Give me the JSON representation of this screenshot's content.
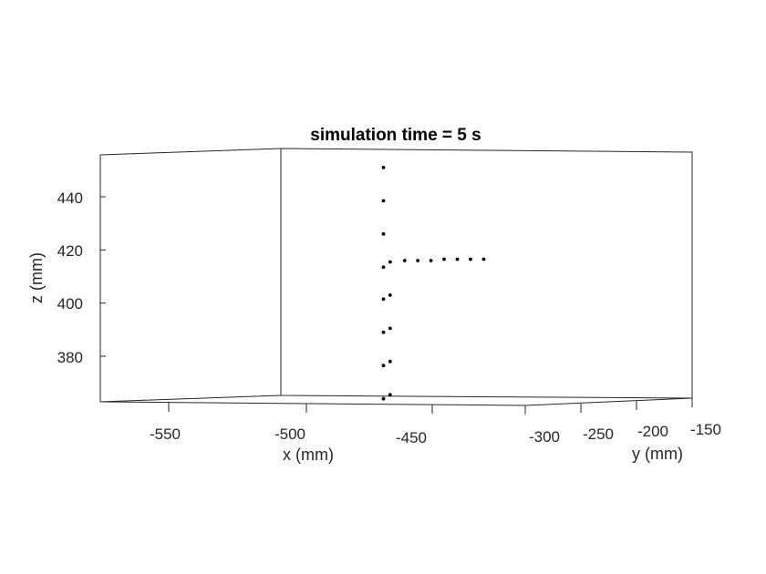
{
  "chart_data": {
    "type": "scatter3d",
    "title": "simulation time = 5 s",
    "xlabel": "x (mm)",
    "ylabel": "y (mm)",
    "zlabel": "z (mm)",
    "x_ticks": [
      "-550",
      "-500",
      "-450"
    ],
    "y_ticks": [
      "-300",
      "-250",
      "-200",
      "-150"
    ],
    "z_ticks": [
      "440",
      "420",
      "400",
      "380"
    ],
    "z_tick_values": [
      440,
      420,
      400,
      380
    ],
    "zlim": [
      362.5,
      454.5
    ],
    "grid": false,
    "marker_color": "#000000",
    "points_projected": [
      {
        "h": -468.5,
        "z": 451.0
      },
      {
        "h": -468.5,
        "z": 438.5
      },
      {
        "h": -468.5,
        "z": 426.0
      },
      {
        "h": -468.5,
        "z": 413.5
      },
      {
        "h": -468.5,
        "z": 401.5
      },
      {
        "h": -468.5,
        "z": 389.0
      },
      {
        "h": -468.5,
        "z": 376.5
      },
      {
        "h": -468.5,
        "z": 364.0
      },
      {
        "h": -466.0,
        "z": 403.0
      },
      {
        "h": -466.0,
        "z": 390.5
      },
      {
        "h": -466.0,
        "z": 378.0
      },
      {
        "h": -466.0,
        "z": 365.5
      },
      {
        "h": -466.0,
        "z": 415.5
      },
      {
        "h": -460.5,
        "z": 416.0
      },
      {
        "h": -455.5,
        "z": 416.0
      },
      {
        "h": -450.5,
        "z": 416.0
      },
      {
        "h": -445.5,
        "z": 416.5
      },
      {
        "h": -440.5,
        "z": 416.5
      },
      {
        "h": -435.5,
        "z": 416.5
      },
      {
        "h": -430.5,
        "z": 416.5
      }
    ]
  }
}
